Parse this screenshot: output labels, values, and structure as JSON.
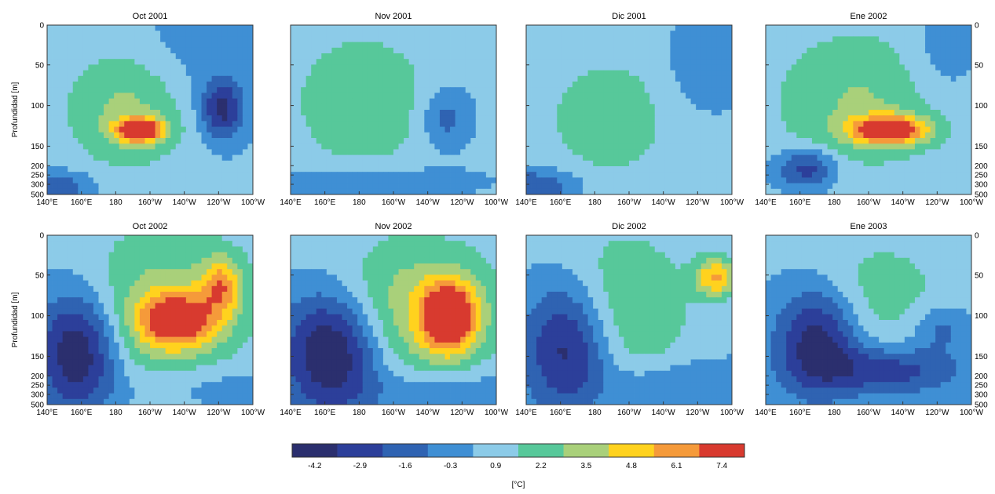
{
  "chart_data": {
    "type": "heatmap",
    "panels": [
      {
        "title": "Oct 2001"
      },
      {
        "title": "Nov 2001"
      },
      {
        "title": "Dic 2001"
      },
      {
        "title": "Ene 2002"
      },
      {
        "title": "Oct 2002"
      },
      {
        "title": "Nov  2002"
      },
      {
        "title": "Dic  2002"
      },
      {
        "title": "Ene 2003"
      }
    ],
    "ylabel": "Profundidad [m]",
    "yticks": [
      "0",
      "50",
      "100",
      "150",
      "200",
      "250",
      "300",
      "500"
    ],
    "xticks": [
      "140°E",
      "160°E",
      "180",
      "160°W",
      "140°W",
      "120°W",
      "100°W"
    ],
    "xlim": [
      "140°E",
      "100°W"
    ],
    "colorbar": {
      "label": "[°C]",
      "ticks": [
        "-4.2",
        "-2.9",
        "-1.6",
        "-0.3",
        "0.9",
        "2.2",
        "3.5",
        "4.8",
        "6.1",
        "7.4"
      ],
      "colors": [
        "#2b2f6e",
        "#2c3f9a",
        "#2f63b2",
        "#3f8fd4",
        "#8ccbe8",
        "#57c89a",
        "#a9d07a",
        "#ffd21e",
        "#f59a3a",
        "#d83a2f"
      ]
    }
  }
}
